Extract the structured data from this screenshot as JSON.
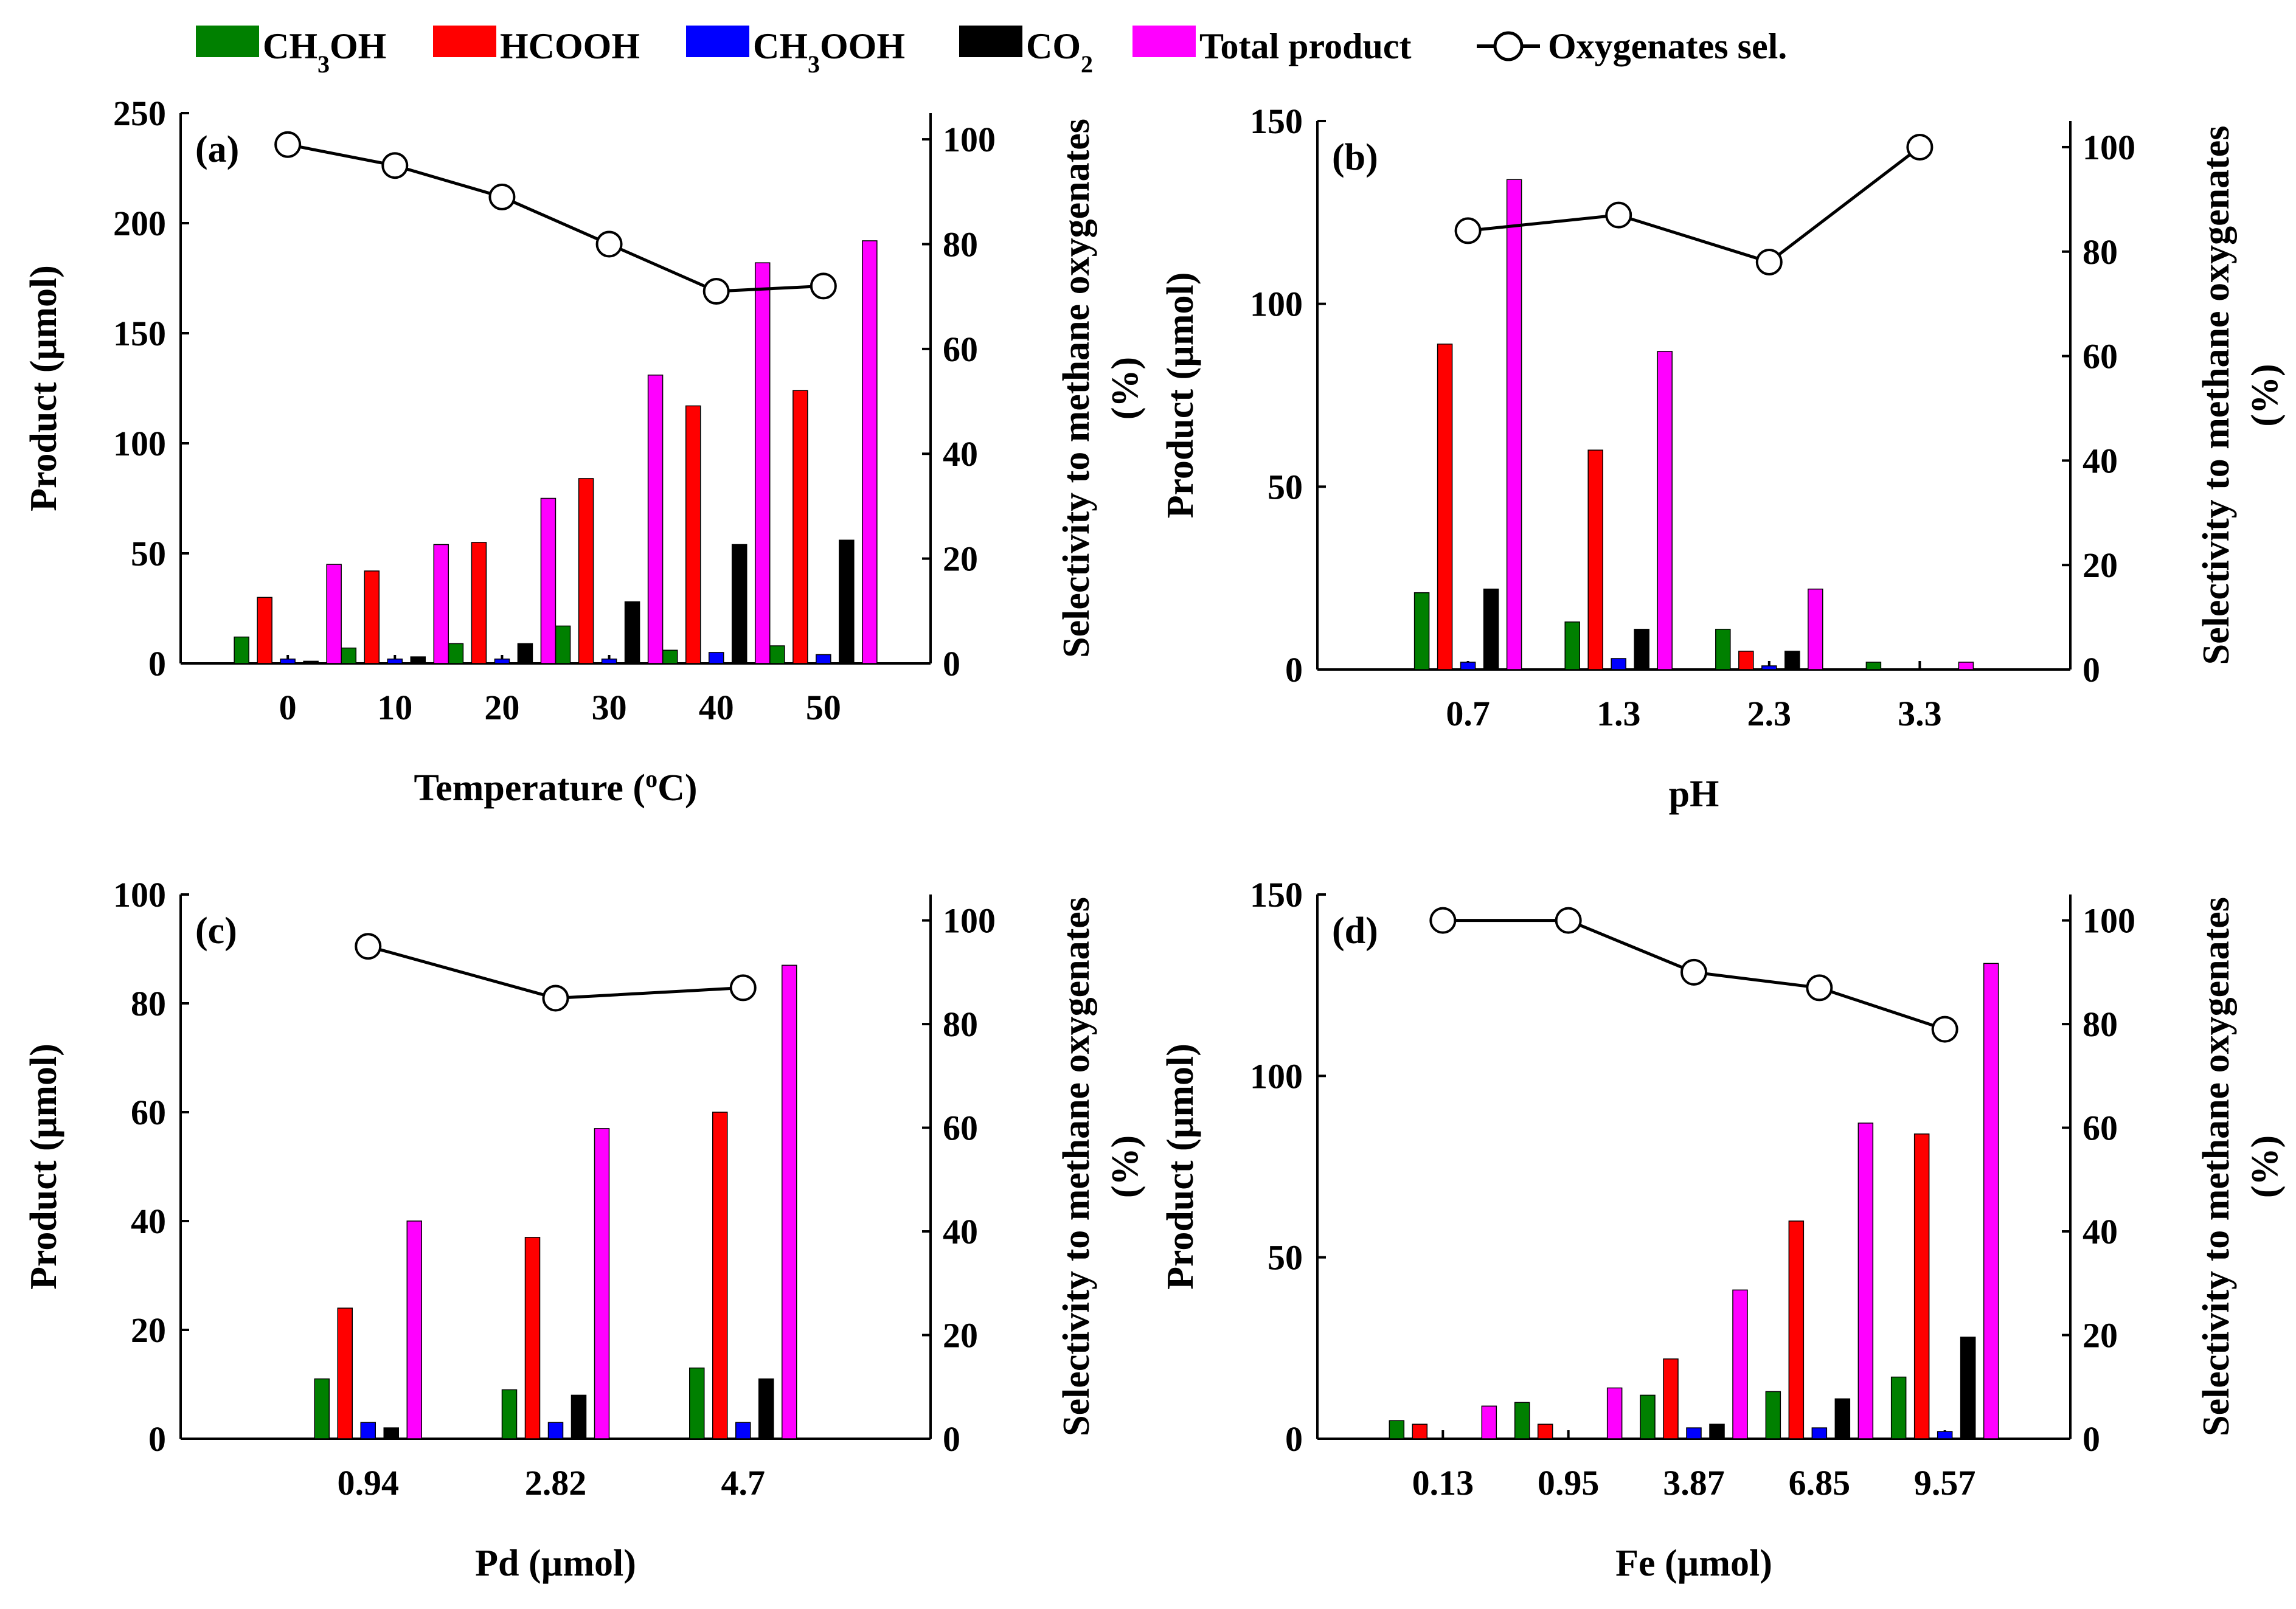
{
  "legend": {
    "items": [
      {
        "key": "ch3oh",
        "label": "CH",
        "sub": "3",
        "tail": "OH",
        "color": "#008000"
      },
      {
        "key": "hcooh",
        "label": "HCOOH",
        "sub": "",
        "tail": "",
        "color": "#ff0000"
      },
      {
        "key": "ch3ooh",
        "label": "CH",
        "sub": "3",
        "tail": "OOH",
        "color": "#0000ff"
      },
      {
        "key": "co2",
        "label": "CO",
        "sub": "2",
        "tail": "",
        "color": "#000000"
      },
      {
        "key": "total",
        "label": "Total product",
        "sub": "",
        "tail": "",
        "color": "#ff00ff"
      }
    ],
    "line_label": "Oxygenates sel."
  },
  "chart_data": [
    {
      "type": "bar",
      "panel": "(a)",
      "xlabel": "Temperature (oC)",
      "xlabel_parts": {
        "pre": "Temperature (",
        "sup": "o",
        "post": "C)"
      },
      "ylabel": "Product (µmol)",
      "y2label_line1": "Selectivity to methane oxygenates",
      "y2label_line2": "(%)",
      "ylim": [
        0,
        250
      ],
      "yticks": [
        0,
        50,
        100,
        150,
        200,
        250
      ],
      "y2lim": [
        0,
        105
      ],
      "y2ticks": [
        0,
        20,
        40,
        60,
        80,
        100
      ],
      "categories": [
        "0",
        "10",
        "20",
        "30",
        "40",
        "50"
      ],
      "series": [
        {
          "name": "CH3OH",
          "key": "ch3oh",
          "values": [
            12,
            7,
            9,
            17,
            6,
            8
          ]
        },
        {
          "name": "HCOOH",
          "key": "hcooh",
          "values": [
            30,
            42,
            55,
            84,
            117,
            124
          ]
        },
        {
          "name": "CH3OOH",
          "key": "ch3ooh",
          "values": [
            2,
            2,
            2,
            2,
            5,
            4
          ]
        },
        {
          "name": "CO2",
          "key": "co2",
          "values": [
            1,
            3,
            9,
            28,
            54,
            56
          ]
        },
        {
          "name": "Total product",
          "key": "total",
          "values": [
            45,
            54,
            75,
            131,
            182,
            192
          ]
        }
      ],
      "line": {
        "name": "Oxygenates sel.",
        "values": [
          99,
          95,
          89,
          80,
          71,
          72
        ]
      }
    },
    {
      "type": "bar",
      "panel": "(b)",
      "xlabel": "pH",
      "xlabel_parts": {
        "pre": "pH",
        "sup": "",
        "post": ""
      },
      "ylabel": "Product (µmol)",
      "y2label_line1": "Selectivity to methane oxygenates",
      "y2label_line2": "(%)",
      "ylim": [
        0,
        150
      ],
      "yticks": [
        0,
        50,
        100,
        150
      ],
      "y2lim": [
        0,
        105
      ],
      "y2ticks": [
        0,
        20,
        40,
        60,
        80,
        100
      ],
      "categories": [
        "0.7",
        "1.3",
        "2.3",
        "3.3"
      ],
      "series": [
        {
          "name": "CH3OH",
          "key": "ch3oh",
          "values": [
            21,
            13,
            11,
            2
          ]
        },
        {
          "name": "HCOOH",
          "key": "hcooh",
          "values": [
            89,
            60,
            5,
            0
          ]
        },
        {
          "name": "CH3OOH",
          "key": "ch3ooh",
          "values": [
            2,
            3,
            1,
            0
          ]
        },
        {
          "name": "CO2",
          "key": "co2",
          "values": [
            22,
            11,
            5,
            0
          ]
        },
        {
          "name": "Total product",
          "key": "total",
          "values": [
            134,
            87,
            22,
            2
          ]
        }
      ],
      "line": {
        "name": "Oxygenates sel.",
        "values": [
          84,
          87,
          78,
          100
        ]
      }
    },
    {
      "type": "bar",
      "panel": "(c)",
      "xlabel": "Pd (µmol)",
      "xlabel_parts": {
        "pre": "Pd (µmol)",
        "sup": "",
        "post": ""
      },
      "ylabel": "Product (µmol)",
      "y2label_line1": "Selectivity to methane oxygenates",
      "y2label_line2": "(%)",
      "ylim": [
        0,
        100
      ],
      "yticks": [
        0,
        20,
        40,
        60,
        80,
        100
      ],
      "y2lim": [
        0,
        105
      ],
      "y2ticks": [
        0,
        20,
        40,
        60,
        80,
        100
      ],
      "categories": [
        "0.94",
        "2.82",
        "4.7"
      ],
      "series": [
        {
          "name": "CH3OH",
          "key": "ch3oh",
          "values": [
            11,
            9,
            13
          ]
        },
        {
          "name": "HCOOH",
          "key": "hcooh",
          "values": [
            24,
            37,
            60
          ]
        },
        {
          "name": "CH3OOH",
          "key": "ch3ooh",
          "values": [
            3,
            3,
            3
          ]
        },
        {
          "name": "CO2",
          "key": "co2",
          "values": [
            2,
            8,
            11
          ]
        },
        {
          "name": "Total product",
          "key": "total",
          "values": [
            40,
            57,
            87
          ]
        }
      ],
      "line": {
        "name": "Oxygenates sel.",
        "values": [
          95,
          85,
          87
        ]
      }
    },
    {
      "type": "bar",
      "panel": "(d)",
      "xlabel": "Fe (µmol)",
      "xlabel_parts": {
        "pre": "Fe (µmol)",
        "sup": "",
        "post": ""
      },
      "ylabel": "Product (µmol)",
      "y2label_line1": "Selectivity to methane oxygenates",
      "y2label_line2": "(%)",
      "ylim": [
        0,
        150
      ],
      "yticks": [
        0,
        50,
        100,
        150
      ],
      "y2lim": [
        0,
        105
      ],
      "y2ticks": [
        0,
        20,
        40,
        60,
        80,
        100
      ],
      "categories": [
        "0.13",
        "0.95",
        "3.87",
        "6.85",
        "9.57"
      ],
      "series": [
        {
          "name": "CH3OH",
          "key": "ch3oh",
          "values": [
            5,
            10,
            12,
            13,
            17
          ]
        },
        {
          "name": "HCOOH",
          "key": "hcooh",
          "values": [
            4,
            4,
            22,
            60,
            84
          ]
        },
        {
          "name": "CH3OOH",
          "key": "ch3ooh",
          "values": [
            0,
            0,
            3,
            3,
            2
          ]
        },
        {
          "name": "CO2",
          "key": "co2",
          "values": [
            0,
            0,
            4,
            11,
            28
          ]
        },
        {
          "name": "Total product",
          "key": "total",
          "values": [
            9,
            14,
            41,
            87,
            131
          ]
        }
      ],
      "line": {
        "name": "Oxygenates sel.",
        "values": [
          100,
          100,
          90,
          87,
          79
        ]
      }
    }
  ]
}
